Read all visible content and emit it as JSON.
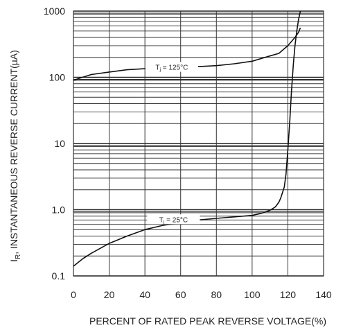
{
  "chart_data": {
    "type": "line",
    "title": "",
    "xlabel": "PERCENT OF RATED PEAK REVERSE VOLTAGE(%)",
    "ylabel": "I",
    "ylabel_sub": "R",
    "ylabel_rest": ", INSTANTANEOUS REVERSE CURRENT(µA)",
    "x_ticks": [
      "0",
      "20",
      "40",
      "60",
      "80",
      "100",
      "120",
      "140"
    ],
    "y_ticks": [
      "0.1",
      "1.0",
      "10",
      "100",
      "1000"
    ],
    "xlim": [
      0,
      140
    ],
    "ylim": [
      0.1,
      1000
    ],
    "y_scale": "log",
    "grid": true,
    "series": [
      {
        "x": [
          0,
          5,
          10,
          20,
          30,
          40,
          50,
          60,
          70,
          80,
          90,
          100,
          110,
          115,
          120,
          124,
          126,
          127
        ],
        "y": [
          90,
          100,
          110,
          120,
          130,
          135,
          140,
          142,
          145,
          150,
          160,
          175,
          210,
          230,
          300,
          400,
          480,
          560
        ]
      },
      {
        "x": [
          0,
          5,
          10,
          20,
          30,
          40,
          50,
          60,
          70,
          80,
          90,
          100,
          105,
          110,
          113,
          115,
          116,
          118,
          119,
          120,
          121,
          122,
          123,
          124,
          125,
          126,
          127
        ],
        "y": [
          0.14,
          0.18,
          0.22,
          0.31,
          0.4,
          0.5,
          0.58,
          0.64,
          0.7,
          0.74,
          0.78,
          0.82,
          0.88,
          0.98,
          1.1,
          1.3,
          1.5,
          2.2,
          3.5,
          8,
          20,
          60,
          150,
          300,
          500,
          750,
          1000
        ]
      }
    ],
    "annotations": [
      {
        "prefix": "T",
        "sub": "j",
        "text": " = 125°C",
        "at": [
          55,
          140
        ]
      },
      {
        "prefix": "T",
        "sub": "j",
        "text": " = 25°C",
        "at": [
          56,
          0.7
        ]
      }
    ]
  }
}
